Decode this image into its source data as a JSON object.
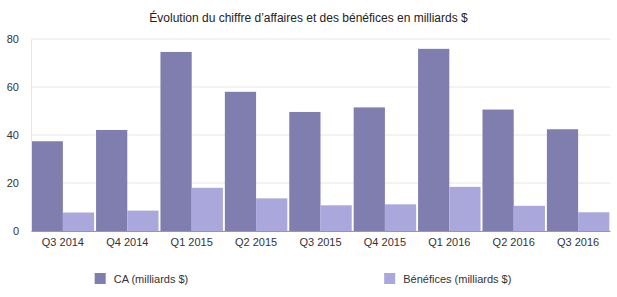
{
  "chart_data": {
    "type": "bar",
    "title": "Évolution du chiffre d’affaires et des bénéfices en milliards $",
    "categories": [
      "Q3 2014",
      "Q4 2014",
      "Q1 2015",
      "Q2 2015",
      "Q3 2015",
      "Q4 2015",
      "Q1 2016",
      "Q2 2016",
      "Q3 2016"
    ],
    "series": [
      {
        "name": "CA (milliards $)",
        "color": "#7f7eaf",
        "values": [
          37.4,
          42.1,
          74.6,
          58.0,
          49.6,
          51.5,
          75.9,
          50.6,
          42.4
        ]
      },
      {
        "name": "Bénéfices (milliards $)",
        "color": "#a9a7dc",
        "values": [
          7.7,
          8.5,
          18.0,
          13.6,
          10.7,
          11.1,
          18.4,
          10.5,
          7.8
        ]
      }
    ],
    "ylim": [
      0,
      80
    ],
    "yticks": [
      0,
      20,
      40,
      60,
      80
    ],
    "grid": true,
    "legend": "bottom"
  }
}
